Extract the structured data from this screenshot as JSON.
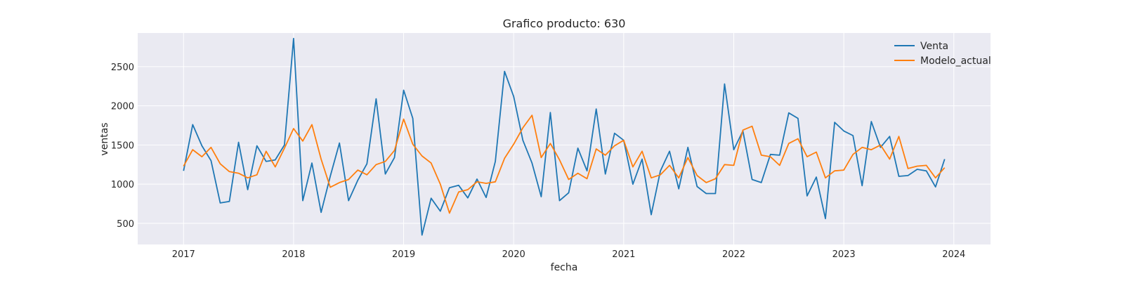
{
  "chart_data": {
    "type": "line",
    "title": "Grafico producto: 630",
    "xlabel": "fecha",
    "ylabel": "ventas",
    "x_start": "2017-01",
    "x_ticks": [
      "2017",
      "2018",
      "2019",
      "2020",
      "2021",
      "2022",
      "2023",
      "2024"
    ],
    "y_ticks": [
      500,
      1000,
      1500,
      2000,
      2500
    ],
    "xlim": [
      "2016-08",
      "2024-05"
    ],
    "ylim": [
      230,
      2930
    ],
    "grid": true,
    "legend_position": "top-right",
    "background": "#eaeaf2",
    "series": [
      {
        "name": "Venta",
        "color": "#1f77b4",
        "values": [
          1170,
          1760,
          1490,
          1300,
          760,
          780,
          1535,
          930,
          1490,
          1290,
          1310,
          1500,
          2860,
          790,
          1270,
          640,
          1100,
          1525,
          790,
          1050,
          1260,
          2090,
          1130,
          1340,
          2200,
          1840,
          350,
          820,
          655,
          955,
          985,
          825,
          1065,
          830,
          1290,
          2440,
          2120,
          1560,
          1270,
          840,
          1915,
          790,
          890,
          1460,
          1170,
          1960,
          1130,
          1650,
          1560,
          1000,
          1320,
          610,
          1170,
          1420,
          940,
          1470,
          970,
          880,
          880,
          2280,
          1440,
          1680,
          1060,
          1020,
          1380,
          1370,
          1910,
          1840,
          850,
          1090,
          560,
          1790,
          1680,
          1620,
          980,
          1800,
          1470,
          1610,
          1100,
          1110,
          1190,
          1170,
          965,
          1320
        ]
      },
      {
        "name": "Modelo_actual",
        "color": "#ff7f0e",
        "values": [
          1230,
          1440,
          1350,
          1470,
          1260,
          1160,
          1140,
          1080,
          1120,
          1420,
          1220,
          1460,
          1710,
          1550,
          1760,
          1320,
          960,
          1020,
          1060,
          1180,
          1120,
          1250,
          1290,
          1430,
          1830,
          1510,
          1360,
          1270,
          1000,
          630,
          900,
          930,
          1030,
          1010,
          1030,
          1330,
          1510,
          1720,
          1880,
          1340,
          1520,
          1310,
          1060,
          1140,
          1070,
          1450,
          1370,
          1490,
          1560,
          1220,
          1420,
          1080,
          1120,
          1240,
          1080,
          1340,
          1110,
          1020,
          1070,
          1250,
          1240,
          1690,
          1740,
          1370,
          1350,
          1240,
          1520,
          1580,
          1350,
          1410,
          1080,
          1170,
          1180,
          1380,
          1470,
          1440,
          1500,
          1320,
          1610,
          1200,
          1230,
          1240,
          1080,
          1210
        ]
      }
    ]
  }
}
